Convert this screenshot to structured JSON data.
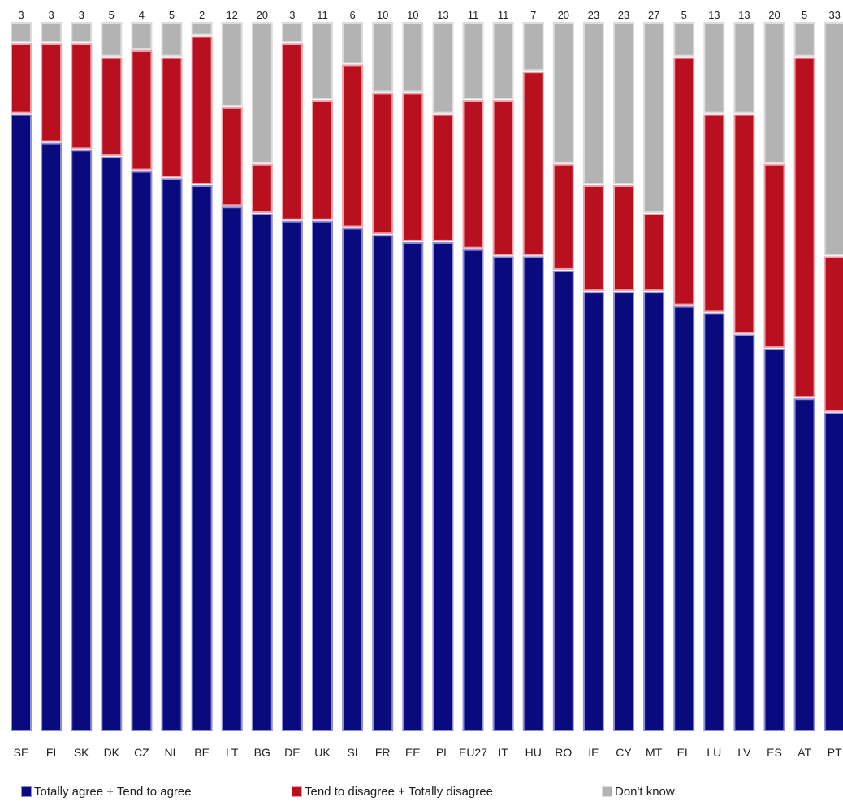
{
  "chart_data": {
    "type": "bar",
    "stacked": true,
    "title": "",
    "xlabel": "",
    "ylabel": "",
    "ylim": [
      0,
      100
    ],
    "grid": false,
    "legend_position": "bottom",
    "categories": [
      "SE",
      "FI",
      "SK",
      "DK",
      "CZ",
      "NL",
      "BE",
      "LT",
      "BG",
      "DE",
      "UK",
      "SI",
      "FR",
      "EE",
      "PL",
      "EU27",
      "IT",
      "HU",
      "RO",
      "IE",
      "CY",
      "MT",
      "EL",
      "LU",
      "LV",
      "ES",
      "AT",
      "PT"
    ],
    "series": [
      {
        "name": "Totally agree + Tend to agree",
        "color": "#0a0a7f",
        "border": "#8f8fd6",
        "values": [
          87,
          83,
          82,
          81,
          79,
          78,
          77,
          74,
          73,
          72,
          72,
          71,
          70,
          69,
          69,
          68,
          67,
          67,
          65,
          62,
          62,
          62,
          60,
          59,
          56,
          54,
          47,
          45
        ]
      },
      {
        "name": "Tend to disagree + Totally disagree",
        "color": "#b8101e",
        "border": "#f0a0a8",
        "values": [
          10,
          14,
          15,
          14,
          17,
          17,
          21,
          14,
          7,
          25,
          17,
          23,
          20,
          21,
          18,
          21,
          22,
          26,
          15,
          15,
          15,
          11,
          35,
          28,
          31,
          26,
          48,
          22
        ]
      },
      {
        "name": "Don't know",
        "color": "#b3b3b3",
        "border": "#dcdcdc",
        "values": [
          3,
          3,
          3,
          5,
          4,
          5,
          2,
          12,
          20,
          3,
          11,
          6,
          10,
          10,
          13,
          11,
          11,
          7,
          20,
          23,
          23,
          27,
          5,
          13,
          13,
          20,
          5,
          33
        ]
      }
    ]
  }
}
